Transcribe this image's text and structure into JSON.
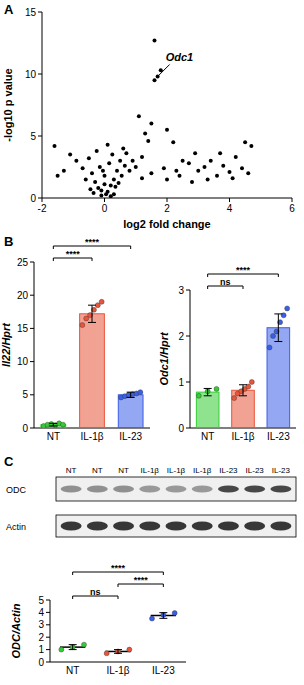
{
  "panels": [
    "A",
    "B",
    "C"
  ],
  "chart_data": [
    {
      "type": "scatter",
      "x_label": "log2 fold change",
      "y_label": "-log10 p value",
      "xlim": [
        -2,
        6
      ],
      "xticks": [
        -2,
        0,
        2,
        4,
        6
      ],
      "ylim": [
        0,
        15
      ],
      "yticks": [
        0,
        5,
        10,
        15
      ],
      "color": "#000000",
      "x": [
        -0.1,
        0.05,
        0.1,
        -0.2,
        0.2,
        -0.3,
        0.3,
        0,
        -0.4,
        0.4,
        -0.15,
        0.15,
        0.5,
        -0.5,
        0.25,
        -0.25,
        0.6,
        0.1,
        -0.1,
        0.35,
        -0.35,
        0.45,
        0.55,
        0.65,
        -0.6,
        -0.7,
        0.8,
        0.9,
        1.0,
        0.7,
        0.0,
        -0.05,
        0.2,
        0.3,
        -0.45,
        -1.6,
        -1.5,
        -1.1,
        -0.9,
        -1.3,
        1.2,
        1.4,
        1.5,
        1.3,
        1.6,
        1.7,
        1.8,
        1.6,
        1.1,
        2.0,
        2.2,
        2.5,
        2.7,
        2.9,
        3.0,
        3.2,
        3.4,
        3.6,
        3.8,
        4.0,
        4.2,
        4.4,
        4.5,
        4.6,
        4.7,
        2.0,
        2.4,
        2.8,
        3.3,
        1.5,
        1.2,
        1.9,
        2.3,
        3.7,
        4.1
      ],
      "values": [
        0.2,
        0.3,
        0.5,
        0.8,
        1.0,
        1.3,
        1.5,
        1.8,
        2.0,
        2.2,
        2.5,
        2.8,
        3.0,
        3.2,
        3.5,
        3.8,
        4.0,
        4.3,
        0.6,
        0.9,
        0.4,
        1.2,
        1.8,
        2.6,
        1.5,
        2.4,
        2.2,
        3.0,
        2.5,
        3.6,
        1.1,
        2.2,
        0.15,
        0.3,
        0.7,
        4.2,
        1.8,
        3.5,
        3.0,
        2.2,
        3.3,
        4.6,
        6.0,
        5.2,
        9.5,
        9.8,
        10.3,
        12.7,
        6.6,
        5.5,
        4.5,
        3.0,
        2.8,
        3.6,
        2.2,
        2.5,
        3.0,
        1.8,
        2.6,
        2.1,
        3.3,
        2.4,
        4.5,
        2.0,
        4.2,
        1.5,
        1.8,
        1.3,
        1.5,
        2.0,
        1.6,
        2.4,
        2.2,
        3.6,
        1.6
      ],
      "annotations": [
        {
          "text": "Odc1",
          "x": 1.7,
          "y": 9.8
        }
      ]
    },
    {
      "type": "bar",
      "y_label": "Il22/Hprt",
      "categories": [
        "NT",
        "IL-1β",
        "IL-23"
      ],
      "values": [
        0.5,
        17.2,
        5.0
      ],
      "errors": [
        0.2,
        1.3,
        0.4
      ],
      "points": [
        [
          0.3,
          0.5,
          0.6,
          0.4,
          0.7,
          0.5
        ],
        [
          15.5,
          16.5,
          17.0,
          17.8,
          18.5,
          19.0
        ],
        [
          4.6,
          4.8,
          5.0,
          5.1,
          5.2,
          5.4
        ]
      ],
      "colors": [
        "#33cc33",
        "#e8553a",
        "#3a5ee8"
      ],
      "ylim": [
        0,
        25
      ],
      "yticks": [
        0,
        5,
        10,
        15,
        20,
        25
      ],
      "annotations": [
        {
          "from": 0,
          "to": 1,
          "text": "****"
        },
        {
          "from": 0,
          "to": 2,
          "text": "****"
        }
      ]
    },
    {
      "type": "bar",
      "y_label": "Odc1/Hprt",
      "categories": [
        "NT",
        "IL-1β",
        "IL-23"
      ],
      "values": [
        0.78,
        0.82,
        2.18
      ],
      "errors": [
        0.08,
        0.12,
        0.3
      ],
      "points": [
        [
          0.7,
          0.8,
          0.85
        ],
        [
          0.65,
          0.75,
          0.8,
          0.85,
          0.9,
          1.0
        ],
        [
          1.75,
          2.0,
          2.1,
          2.3,
          2.45,
          2.6
        ]
      ],
      "colors": [
        "#33cc33",
        "#e8553a",
        "#3a5ee8"
      ],
      "ylim": [
        0,
        3
      ],
      "yticks": [
        0,
        1,
        2,
        3
      ],
      "annotations": [
        {
          "from": 0,
          "to": 1,
          "text": "ns"
        },
        {
          "from": 0,
          "to": 2,
          "text": "****"
        }
      ]
    },
    {
      "type": "dot",
      "y_label": "ODC/Actin",
      "categories": [
        "NT",
        "IL-1β",
        "IL-23"
      ],
      "values": [
        1.2,
        0.85,
        3.75
      ],
      "errors": [
        0.2,
        0.15,
        0.23
      ],
      "points": [
        [
          1.0,
          1.2,
          1.4
        ],
        [
          0.7,
          0.85,
          1.0
        ],
        [
          3.5,
          3.8,
          3.95
        ]
      ],
      "colors": [
        "#33cc33",
        "#e8553a",
        "#3a5ee8"
      ],
      "ylim": [
        0,
        5
      ],
      "yticks": [
        0,
        1,
        2,
        3,
        4,
        5
      ],
      "annotations": [
        {
          "from": 0,
          "to": 1,
          "text": "ns"
        },
        {
          "from": 1,
          "to": 2,
          "text": "****"
        },
        {
          "from": 0,
          "to": 2,
          "text": "****"
        }
      ]
    }
  ],
  "blot": {
    "lanes": [
      "NT",
      "NT",
      "NT",
      "IL-1β",
      "IL-1β",
      "IL-1β",
      "IL-23",
      "IL-23",
      "IL-23"
    ],
    "rows": [
      "ODC",
      "Actin"
    ]
  }
}
